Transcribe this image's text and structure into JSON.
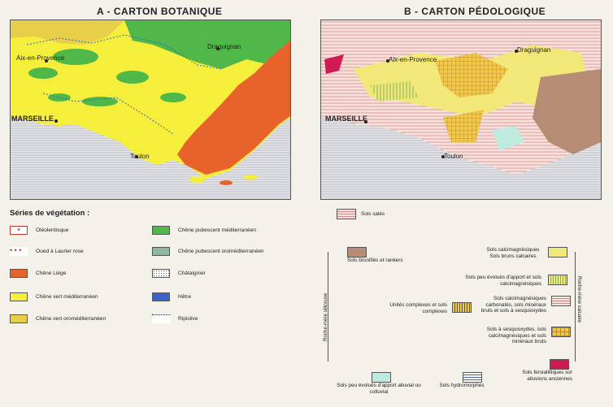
{
  "titles": {
    "a": "A - CARTON BOTANIQUE",
    "b": "B - CARTON PÉDOLOGIQUE"
  },
  "places": {
    "aix": "Aix-en-Provence",
    "draguignan": "Draguignan",
    "marseille": "MARSEILLE",
    "toulon": "Toulon"
  },
  "legend_veg": {
    "heading": "Séries de végétation :",
    "items": [
      {
        "label": "Oléolentisque",
        "color": "#ffffff",
        "icon": "oleolentisque-symbol"
      },
      {
        "label": "Oued à Laurier rose",
        "color": "#ffffff",
        "icon": "red-dots-line"
      },
      {
        "label": "Chêne Liège",
        "color": "#e8632b"
      },
      {
        "label": "Chêne vert méditerranéen",
        "color": "#f5ee3a"
      },
      {
        "label": "Chêne vert oroméditerranéen",
        "color": "#e8cf4a"
      },
      {
        "label": "Chêne pubescent méditerranéen",
        "color": "#4fb848"
      },
      {
        "label": "Chêne pubescent oroméditerranéen",
        "color": "#8fb8a0"
      },
      {
        "label": "Châtaignier",
        "color": "#ffffff",
        "icon": "dotted-pattern"
      },
      {
        "label": "Hêtre",
        "color": "#3d62c8"
      },
      {
        "label": "Ripisilve",
        "color": "#ffffff",
        "icon": "dotted-line"
      }
    ]
  },
  "legend_soil": {
    "sales": "Sols salés",
    "brunifies": "Sols brunifiés et rankers",
    "bruns_calcaires": "Sols calcimagnésiques Sols bruns calcaires",
    "peu_evolues_apport": "Sols peu évolués d'apport et sols calcimagnésiques",
    "unites_complexes": "Unités complexes et sols complexes",
    "carbonates": "Sols calcimagnésiques carbonatés, sols minéraux bruts et sols à sesquioxydes",
    "sesquioxydes": "Sols à sesquioxydes, sols calcimagnésiques et sols minéraux bruts",
    "fersiallitiques": "Sols fersiallitiques sur alluvions anciennes",
    "alluvial": "Sols peu évolués d'apport alluvial ou colluvial",
    "hydromorphes": "Sols hydromorphes",
    "roche_siliceuse": "Roche-mère siliceuse",
    "roche_calcaire": "Roche-mère calcaire"
  },
  "colors": {
    "sea": "#e6e6ea",
    "green": "#4fb848",
    "yellow": "#f5ee3a",
    "orange": "#e8632b",
    "soil_pink": "#f0c2c2",
    "soil_yellow": "#f2e87a",
    "soil_brown": "#b68c74",
    "soil_crimson": "#d01a55",
    "soil_teal": "#bfeadf"
  }
}
